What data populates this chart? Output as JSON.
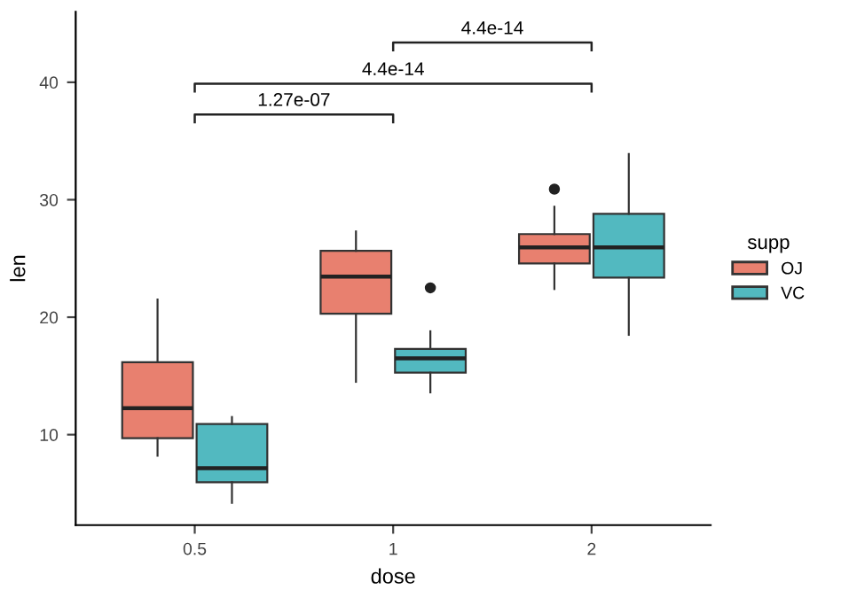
{
  "chart_data": {
    "type": "box",
    "xlabel": "dose",
    "ylabel": "len",
    "legend_title": "supp",
    "categories": [
      "0.5",
      "1",
      "2"
    ],
    "series": [
      {
        "name": "OJ",
        "color": "#e8806f",
        "boxes": [
          {
            "low": 8.2,
            "q1": 9.7,
            "median": 12.25,
            "q3": 16.175,
            "high": 21.5
          },
          {
            "low": 14.5,
            "q1": 20.3,
            "median": 23.45,
            "q3": 25.65,
            "high": 27.3
          },
          {
            "low": 22.4,
            "q1": 24.575,
            "median": 25.95,
            "q3": 27.075,
            "high": 29.4,
            "outliers": [
              30.9
            ]
          }
        ]
      },
      {
        "name": "VC",
        "color": "#52b9c0",
        "boxes": [
          {
            "low": 4.2,
            "q1": 5.95,
            "median": 7.15,
            "q3": 10.9,
            "high": 11.5
          },
          {
            "low": 13.6,
            "q1": 15.275,
            "median": 16.5,
            "q3": 17.3,
            "high": 18.8,
            "outliers": [
              22.5
            ]
          },
          {
            "low": 18.5,
            "q1": 23.375,
            "median": 25.95,
            "q3": 28.8,
            "high": 33.9
          }
        ]
      }
    ],
    "ylim": [
      2.3,
      46
    ],
    "yticks": [
      10,
      20,
      30,
      40
    ],
    "grid": false,
    "legend": "right",
    "annotations": [
      "1.27e-07",
      "4.4e-14",
      "4.4e-14"
    ]
  }
}
